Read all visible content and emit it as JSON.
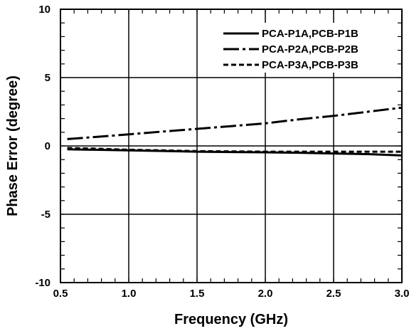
{
  "chart_data": {
    "type": "line",
    "title": "",
    "xlabel": "Frequency (GHz)",
    "ylabel": "Phase Error (degree)",
    "xlim": [
      0.5,
      3.0
    ],
    "ylim": [
      -10,
      10
    ],
    "xticks": [
      "0.5",
      "1.0",
      "1.5",
      "2.0",
      "2.5",
      "3.0"
    ],
    "yticks": [
      "10",
      "5",
      "0",
      "-5",
      "-10"
    ],
    "grid": true,
    "legend_position": "top-right",
    "series": [
      {
        "name": "PCA-P1A,PCB-P1B",
        "line_style": "solid",
        "color": "#000000",
        "x": [
          0.55,
          0.75,
          1.0,
          1.25,
          1.5,
          1.75,
          2.0,
          2.25,
          2.5,
          2.75,
          3.0
        ],
        "y": [
          -0.25,
          -0.28,
          -0.33,
          -0.37,
          -0.42,
          -0.45,
          -0.47,
          -0.5,
          -0.55,
          -0.6,
          -0.7
        ]
      },
      {
        "name": "PCA-P2A,PCB-P2B",
        "line_style": "dash-dot",
        "color": "#000000",
        "x": [
          0.55,
          0.75,
          1.0,
          1.25,
          1.5,
          1.75,
          2.0,
          2.25,
          2.5,
          2.75,
          3.0
        ],
        "y": [
          0.5,
          0.65,
          0.85,
          1.05,
          1.25,
          1.45,
          1.65,
          1.95,
          2.2,
          2.5,
          2.8
        ]
      },
      {
        "name": "PCA-P3A,PCB-P3B",
        "line_style": "dashed",
        "color": "#000000",
        "x": [
          0.55,
          0.75,
          1.0,
          1.25,
          1.5,
          1.75,
          2.0,
          2.25,
          2.5,
          2.75,
          3.0
        ],
        "y": [
          -0.15,
          -0.2,
          -0.28,
          -0.33,
          -0.38,
          -0.4,
          -0.42,
          -0.42,
          -0.42,
          -0.42,
          -0.42
        ]
      }
    ]
  }
}
